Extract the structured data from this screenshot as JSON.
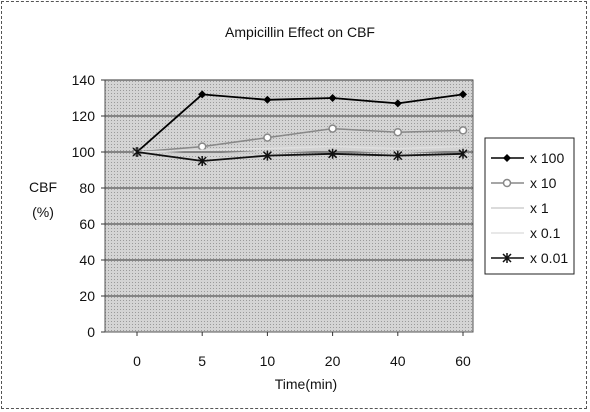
{
  "chart_data": {
    "type": "line",
    "title": "Ampicillin Effect on CBF",
    "xlabel": "Time(min)",
    "ylabel_line1": "CBF",
    "ylabel_line2": "(%)",
    "categories": [
      "0",
      "5",
      "10",
      "20",
      "40",
      "60"
    ],
    "ylim": [
      0,
      140
    ],
    "yticks": [
      "0",
      "20",
      "40",
      "60",
      "80",
      "100",
      "120",
      "140"
    ],
    "grid": true,
    "legend_position": "right",
    "series": [
      {
        "name": "x 100",
        "values": [
          100,
          132,
          129,
          130,
          127,
          132
        ],
        "color": "#000000",
        "marker": "diamond"
      },
      {
        "name": "x 10",
        "values": [
          100,
          103,
          108,
          113,
          111,
          112
        ],
        "color": "#888888",
        "marker": "circle"
      },
      {
        "name": "x 1",
        "values": [
          100,
          99,
          100,
          101,
          100,
          101
        ],
        "color": "#cfcfcf",
        "marker": "none"
      },
      {
        "name": "x 0.1",
        "values": [
          100,
          101,
          102,
          103,
          102,
          103
        ],
        "color": "#e0e0e0",
        "marker": "none"
      },
      {
        "name": "x 0.01",
        "values": [
          100,
          95,
          98,
          99,
          98,
          99
        ],
        "color": "#111111",
        "marker": "star"
      }
    ]
  }
}
